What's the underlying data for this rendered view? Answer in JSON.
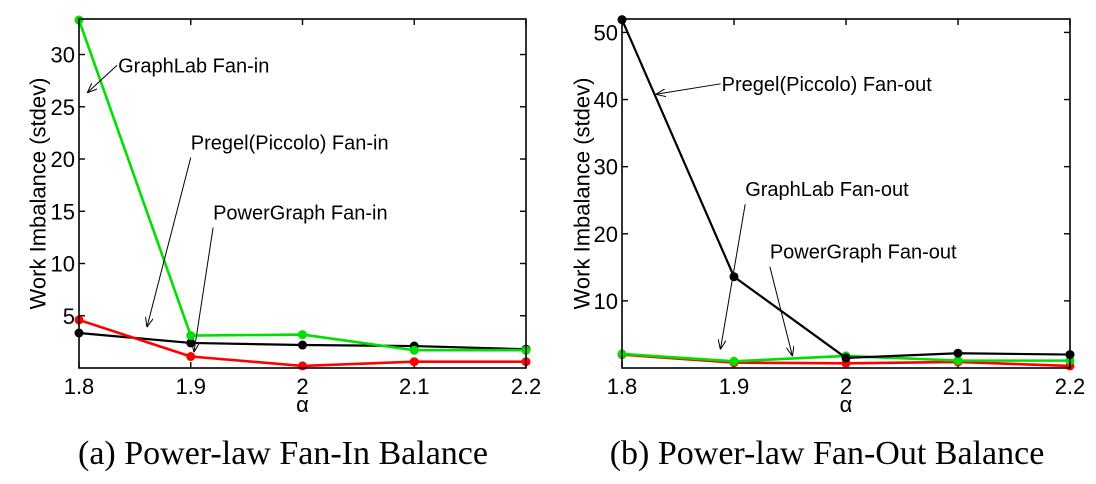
{
  "chart_data": [
    {
      "type": "line",
      "title": "",
      "caption": "(a) Power-law Fan-In Balance",
      "xlabel": "α",
      "ylabel": "Work Imbalance (stdev)",
      "x": [
        1.8,
        1.9,
        2.0,
        2.1,
        2.2
      ],
      "xtick_labels": [
        "1.8",
        "1.9",
        "2",
        "2.1",
        "2.2"
      ],
      "xlim": [
        1.8,
        2.2
      ],
      "yticks": [
        5,
        10,
        15,
        20,
        25,
        30
      ],
      "ytick_labels": [
        "5",
        "10",
        "15",
        "20",
        "25",
        "30"
      ],
      "ylim": [
        0,
        33.4
      ],
      "grid": false,
      "series": [
        {
          "name": "GraphLab Fan-in",
          "color": "#00e000",
          "values": [
            33.3,
            3.1,
            3.2,
            1.7,
            1.7
          ]
        },
        {
          "name": "Pregel(Piccolo) Fan-in",
          "color": "#000000",
          "values": [
            3.35,
            2.4,
            2.2,
            2.1,
            1.8
          ]
        },
        {
          "name": "PowerGraph Fan-in",
          "color": "#ff0000",
          "values": [
            4.6,
            1.1,
            0.2,
            0.6,
            0.6
          ]
        }
      ],
      "annotations": [
        {
          "text": "GraphLab Fan-in",
          "series": "GraphLab Fan-in",
          "text_at": [
            1.835,
            28.3
          ],
          "arrow_to": [
            1.808,
            26.4
          ]
        },
        {
          "text": "Pregel(Piccolo) Fan-in",
          "series": "Pregel(Piccolo) Fan-in",
          "text_at": [
            1.9,
            20.9
          ],
          "arrow_to": [
            1.861,
            4.0
          ]
        },
        {
          "text": "PowerGraph Fan-in",
          "series": "PowerGraph Fan-in",
          "text_at": [
            1.92,
            14.2
          ],
          "arrow_to": [
            1.903,
            1.6
          ]
        }
      ]
    },
    {
      "type": "line",
      "title": "",
      "caption": "(b) Power-law Fan-Out Balance",
      "xlabel": "α",
      "ylabel": "Work Imbalance (stdev)",
      "x": [
        1.8,
        1.9,
        2.0,
        2.1,
        2.2
      ],
      "xtick_labels": [
        "1.8",
        "1.9",
        "2",
        "2.1",
        "2.2"
      ],
      "xlim": [
        1.8,
        2.2
      ],
      "yticks": [
        10,
        20,
        30,
        40,
        50
      ],
      "ytick_labels": [
        "10",
        "20",
        "30",
        "40",
        "50"
      ],
      "ylim": [
        0,
        52.0
      ],
      "grid": false,
      "series": [
        {
          "name": "Pregel(Piccolo) Fan-out",
          "color": "#000000",
          "values": [
            51.9,
            13.6,
            1.5,
            2.2,
            2.0
          ]
        },
        {
          "name": "GraphLab Fan-out",
          "color": "#00e000",
          "values": [
            2.1,
            1.0,
            1.8,
            1.1,
            1.1
          ]
        },
        {
          "name": "PowerGraph Fan-out",
          "color": "#ff0000",
          "values": [
            2.0,
            0.8,
            0.7,
            0.9,
            0.3
          ]
        }
      ],
      "annotations": [
        {
          "text": "Pregel(Piccolo) Fan-out",
          "series": "Pregel(Piccolo) Fan-out",
          "text_at": [
            1.889,
            41.3
          ],
          "arrow_to": [
            1.831,
            40.8
          ]
        },
        {
          "text": "GraphLab Fan-out",
          "series": "GraphLab Fan-out",
          "text_at": [
            1.91,
            25.6
          ],
          "arrow_to": [
            1.888,
            2.9
          ]
        },
        {
          "text": "PowerGraph Fan-out",
          "series": "PowerGraph Fan-out",
          "text_at": [
            1.932,
            16.3
          ],
          "arrow_to": [
            1.952,
            1.9
          ]
        }
      ]
    }
  ]
}
